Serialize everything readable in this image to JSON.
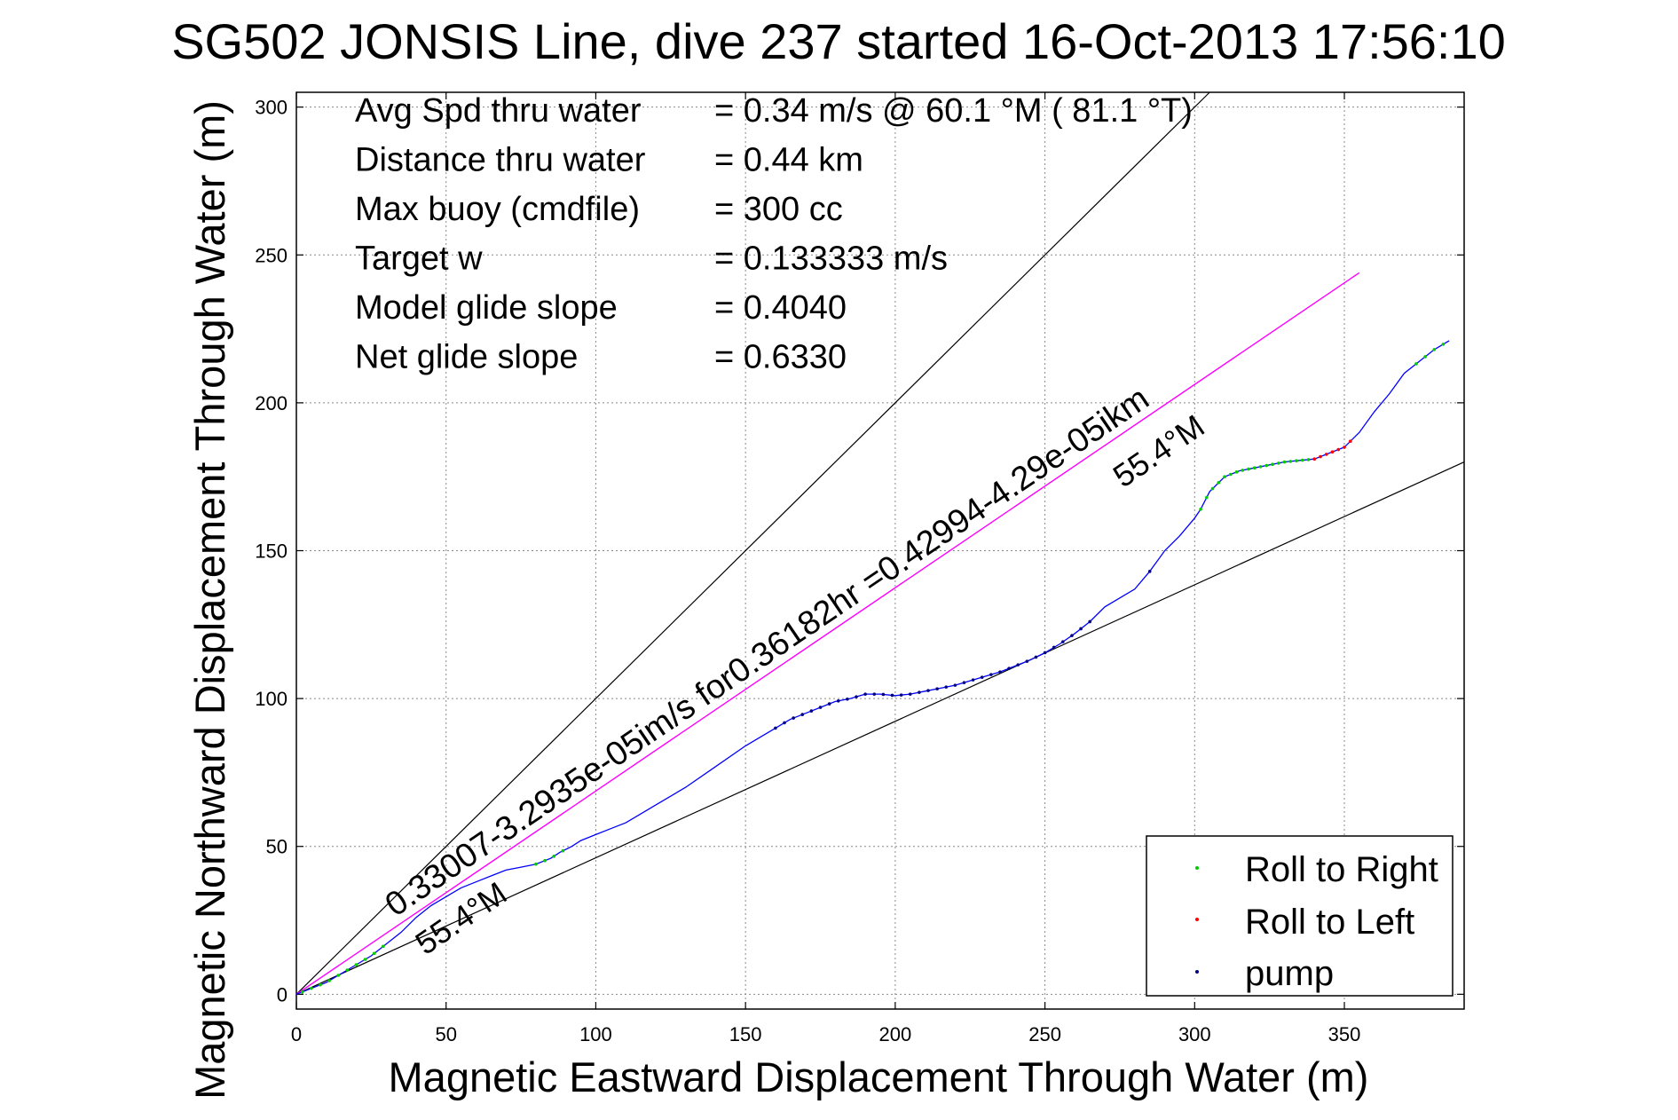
{
  "title": "SG502 JONSIS Line, dive 237 started 16-Oct-2013 17:56:10",
  "chart_data": {
    "type": "line",
    "xlabel": "Magnetic Eastward Displacement Through Water (m)",
    "ylabel": "Magnetic Northward Displacement Through Water (m)",
    "xlim": [
      0,
      390
    ],
    "ylim": [
      -5,
      305
    ],
    "xticks": [
      "0",
      "50",
      "100",
      "150",
      "200",
      "250",
      "300",
      "350"
    ],
    "yticks": [
      "0",
      "50",
      "100",
      "150",
      "200",
      "250",
      "300"
    ],
    "grid": true,
    "legend_position": "bottom-right",
    "colors": {
      "track": "#0000ff",
      "roll_right": "#00cc00",
      "roll_left": "#ff0000",
      "pump": "#000080",
      "target": "#ff00ff",
      "bounds": "#000000"
    },
    "track": {
      "x": [
        0,
        5,
        10,
        15,
        20,
        25,
        30,
        35,
        40,
        45,
        50,
        55,
        60,
        65,
        70,
        75,
        80,
        85,
        88,
        92,
        95,
        100,
        105,
        110,
        115,
        120,
        130,
        140,
        150,
        160,
        165,
        170,
        175,
        180,
        185,
        190,
        195,
        200,
        205,
        210,
        215,
        220,
        225,
        230,
        235,
        240,
        245,
        250,
        255,
        260,
        265,
        270,
        275,
        280,
        285,
        290,
        295,
        300,
        302,
        305,
        310,
        315,
        320,
        330,
        340,
        345,
        350,
        355,
        360,
        365,
        370,
        375,
        380,
        385
      ],
      "y": [
        0,
        2,
        4,
        7,
        10,
        13,
        17,
        21,
        26,
        30,
        33,
        36,
        38,
        40,
        42,
        43,
        44,
        46,
        48,
        50,
        52,
        54,
        56,
        58,
        61,
        64,
        70,
        77,
        84,
        90,
        93,
        95,
        97,
        99,
        100,
        101.5,
        101.5,
        101,
        101.5,
        102.5,
        103.5,
        104.5,
        106,
        107.5,
        109,
        111,
        113,
        115.5,
        118.5,
        122,
        126,
        131,
        134,
        137,
        143,
        150,
        155,
        161,
        164,
        170,
        175,
        177,
        178,
        180,
        181,
        183,
        185,
        190,
        197,
        203,
        210,
        214,
        218,
        221
      ],
      "roll_right_x": [
        2,
        5,
        8,
        11,
        14,
        17,
        20,
        23,
        26,
        29,
        80,
        83,
        86,
        89,
        302,
        304,
        306,
        308,
        310,
        312,
        314,
        316,
        318,
        320,
        322,
        324,
        326,
        328,
        330,
        332,
        334,
        336,
        338,
        374,
        377,
        380,
        383
      ],
      "roll_left_x": [
        340,
        342,
        344,
        346,
        348,
        350,
        352
      ],
      "pump_x": [
        160,
        163,
        166,
        169,
        172,
        175,
        178,
        181,
        184,
        187,
        190,
        193,
        196,
        199,
        202,
        205,
        208,
        211,
        214,
        217,
        220,
        223,
        226,
        229,
        232,
        235,
        238,
        241,
        244,
        247,
        250,
        253,
        256,
        259,
        262,
        265,
        285
      ]
    },
    "target_line": {
      "x": [
        0,
        355
      ],
      "y": [
        0,
        244
      ]
    },
    "bound_lines": [
      {
        "x": [
          0,
          305
        ],
        "y": [
          0,
          305
        ]
      },
      {
        "x": [
          0,
          390
        ],
        "y": [
          0,
          180
        ]
      }
    ]
  },
  "annotations": {
    "stats": [
      {
        "label": "Avg Spd thru water",
        "value": "=  0.34 m/s @  60.1 °M ( 81.1 °T)"
      },
      {
        "label": "Distance thru water",
        "value": "=  0.44 km"
      },
      {
        "label": "Max buoy (cmdfile)",
        "value": "= 300 cc"
      },
      {
        "label": "Target w",
        "value": "= 0.133333 m/s"
      },
      {
        "label": "Model glide slope",
        "value": "= 0.4040"
      },
      {
        "label": "Net glide slope",
        "value": "= 0.6330"
      }
    ],
    "line_label_left": "0.33007-3.2935e-05im/s for0.36182hr =0.42994-4.29e-05ikm",
    "heading_start": "55.4°M",
    "heading_end": "55.4°M"
  },
  "legend": {
    "items": [
      {
        "label": "Roll to Right",
        "color": "#00cc00"
      },
      {
        "label": "Roll to Left",
        "color": "#ff0000"
      },
      {
        "label": "pump",
        "color": "#000080"
      }
    ]
  }
}
